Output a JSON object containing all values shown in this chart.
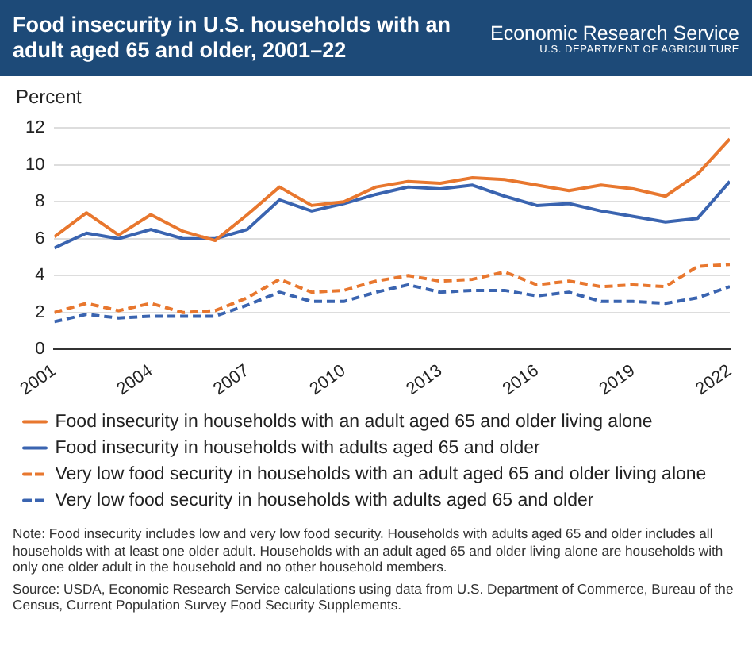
{
  "chart_data": {
    "type": "line",
    "title": "Food insecurity in U.S. households with an adult aged 65 and older, 2001–22",
    "ylabel": "Percent",
    "annotations": [
      "Economic Research Service",
      "U.S. DEPARTMENT OF AGRICULTURE",
      "Note: Food insecurity includes low and very low food security. Households with adults aged 65 and older includes all households with at least one older adult. Households with an adult aged 65 and older living alone are households with only one older adult in the household and no other household members.",
      "Source: USDA, Economic Research Service calculations using data from U.S. Department of Commerce, Bureau of the Census, Current Population Survey Food Security Supplements."
    ],
    "x": [
      2001,
      2002,
      2003,
      2004,
      2005,
      2006,
      2007,
      2008,
      2009,
      2010,
      2011,
      2012,
      2013,
      2014,
      2015,
      2016,
      2017,
      2018,
      2019,
      2020,
      2021,
      2022
    ],
    "series": [
      {
        "name": "Food insecurity in households with an adult aged 65 and older living alone",
        "color": "#e8772e",
        "line_style": "solid",
        "values": [
          6.1,
          7.4,
          6.2,
          7.3,
          6.4,
          5.9,
          7.3,
          8.8,
          7.8,
          8.0,
          8.8,
          9.1,
          9.0,
          9.3,
          9.2,
          8.9,
          8.6,
          8.9,
          8.7,
          8.3,
          9.5,
          11.4
        ]
      },
      {
        "name": "Food insecurity in households with adults aged 65 and older",
        "color": "#3a64b0",
        "line_style": "solid",
        "values": [
          5.5,
          6.3,
          6.0,
          6.5,
          6.0,
          6.0,
          6.5,
          8.1,
          7.5,
          7.9,
          8.4,
          8.8,
          8.7,
          8.9,
          8.3,
          7.8,
          7.9,
          7.5,
          7.2,
          6.9,
          7.1,
          9.1
        ]
      },
      {
        "name": "Very low food security in households with an adult aged 65 and older living alone",
        "color": "#e8772e",
        "line_style": "dashed",
        "values": [
          2.0,
          2.5,
          2.1,
          2.5,
          2.0,
          2.1,
          2.8,
          3.8,
          3.1,
          3.2,
          3.7,
          4.0,
          3.7,
          3.8,
          4.2,
          3.5,
          3.7,
          3.4,
          3.5,
          3.4,
          4.5,
          4.6
        ]
      },
      {
        "name": "Very low food security in households with adults aged 65 and older",
        "color": "#3a64b0",
        "line_style": "dashed",
        "values": [
          1.5,
          1.9,
          1.7,
          1.8,
          1.8,
          1.8,
          2.4,
          3.1,
          2.6,
          2.6,
          3.1,
          3.5,
          3.1,
          3.2,
          3.2,
          2.9,
          3.1,
          2.6,
          2.6,
          2.5,
          2.8,
          3.4
        ]
      }
    ],
    "xlim": [
      2001,
      2022
    ],
    "xticks": [
      2001,
      2004,
      2007,
      2010,
      2013,
      2016,
      2019,
      2022
    ],
    "ylim": [
      0,
      12
    ],
    "yticks": [
      0,
      2,
      4,
      6,
      8,
      10,
      12
    ],
    "grid": "y",
    "legend": "bottom",
    "marker": "none"
  }
}
